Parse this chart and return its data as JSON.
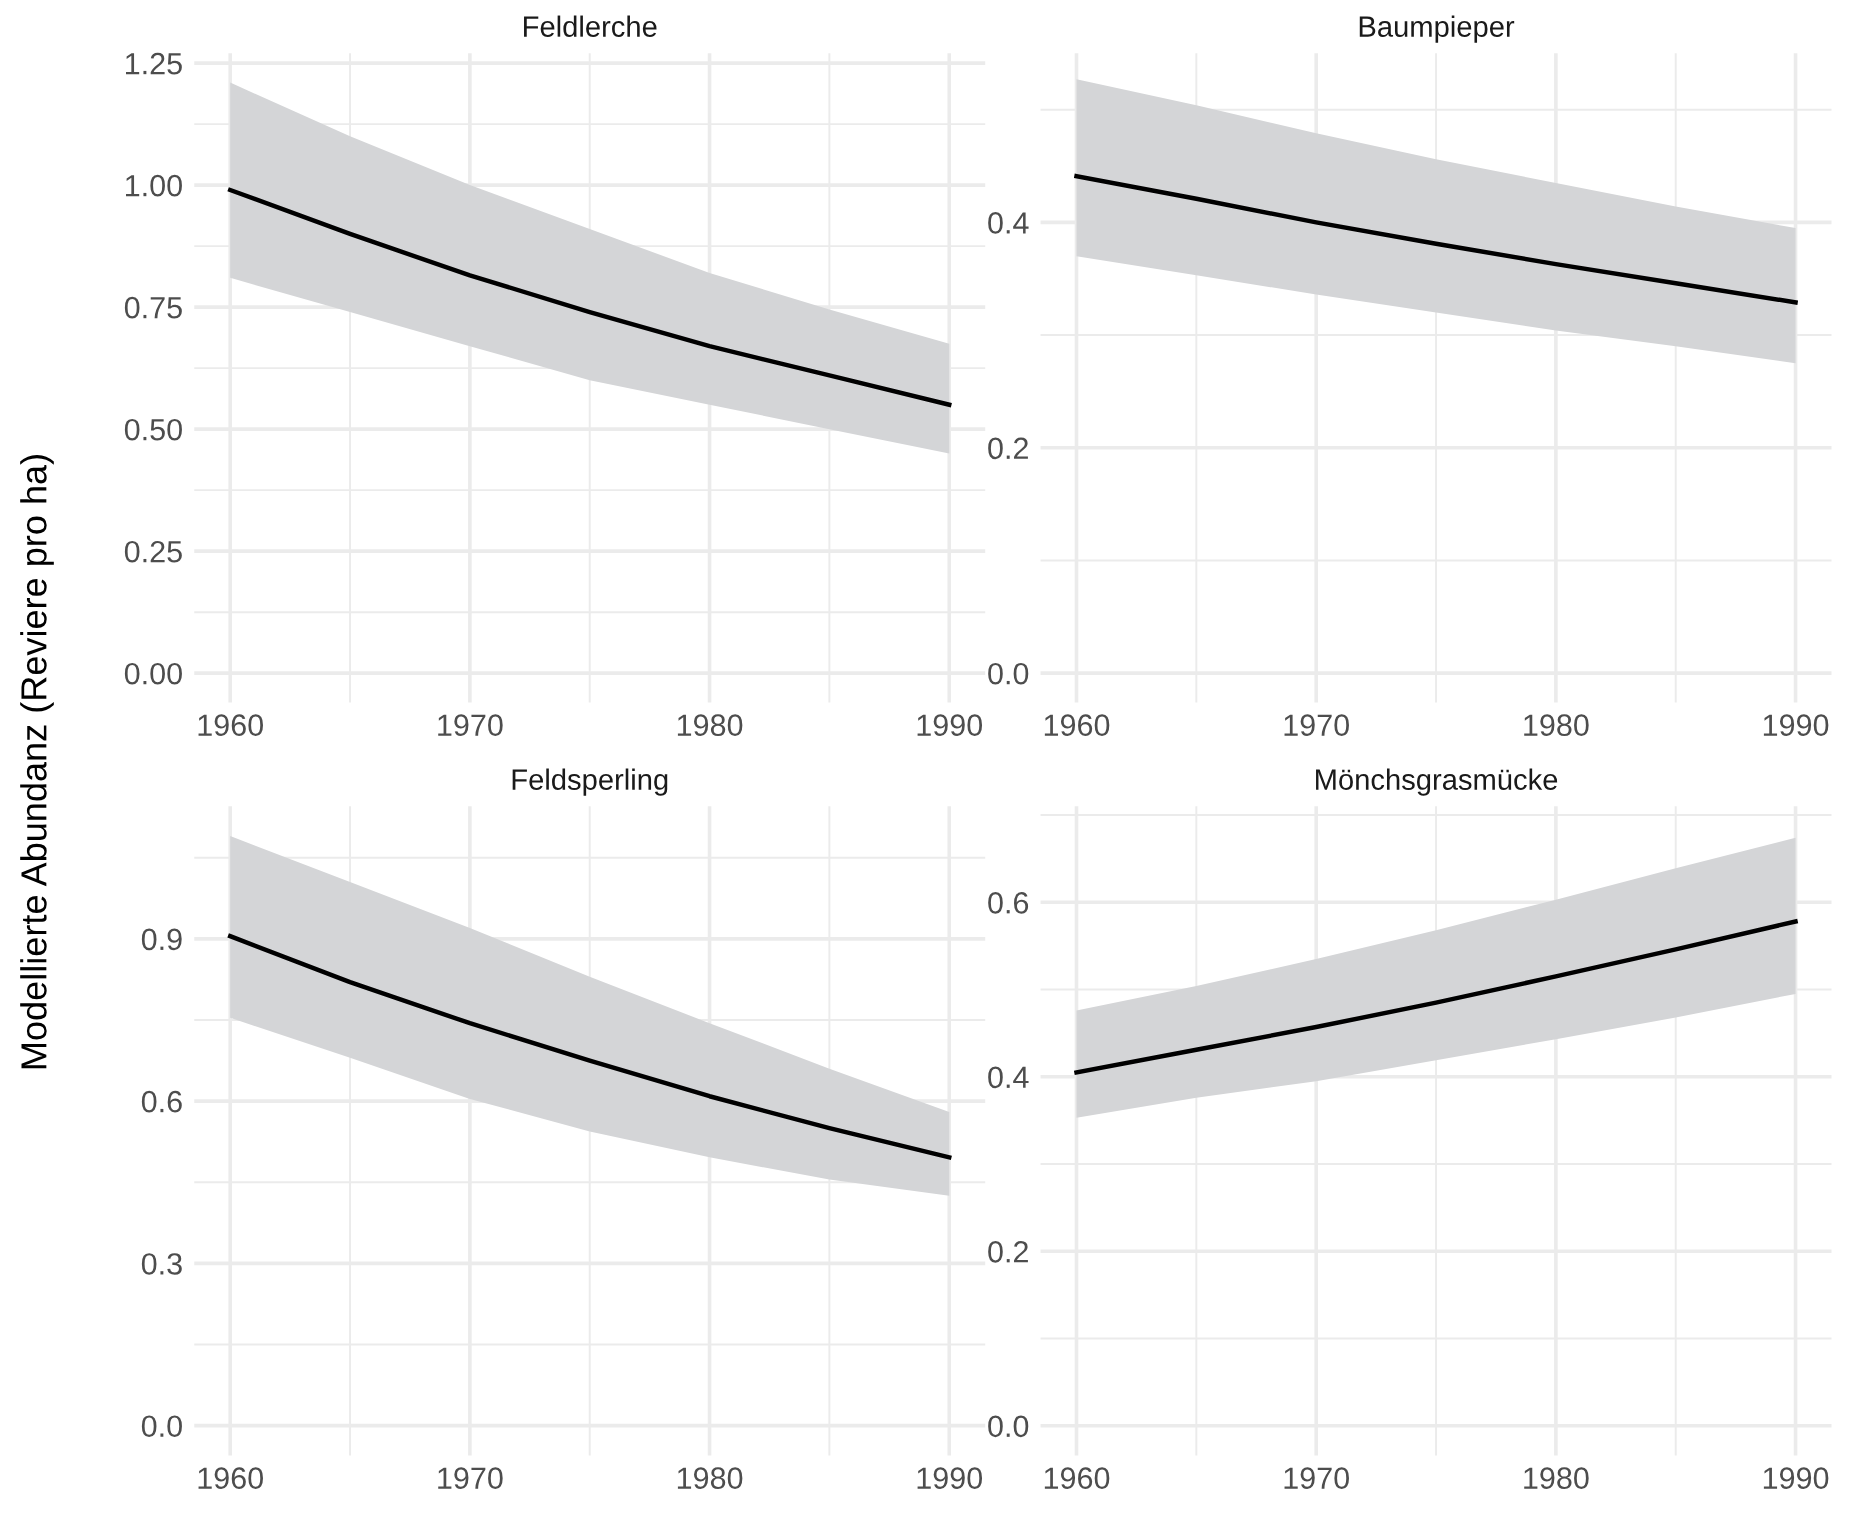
{
  "chart_data": [
    {
      "type": "line",
      "title": "Feldlerche",
      "ylabel": "Modellierte Abundanz (Reviere pro ha)",
      "x": [
        1960,
        1965,
        1970,
        1975,
        1980,
        1985,
        1990
      ],
      "series": [
        {
          "color": "#000000",
          "values": [
            0.99,
            0.9,
            0.815,
            0.74,
            0.67,
            0.61,
            0.55
          ],
          "lower": [
            0.81,
            0.74,
            0.67,
            0.6,
            0.55,
            0.5,
            0.45
          ],
          "upper": [
            1.21,
            1.1,
            1.0,
            0.91,
            0.82,
            0.745,
            0.675
          ]
        }
      ],
      "xlim": [
        1958.5,
        1991.5
      ],
      "xticks": [
        1960,
        {
          "value": 1965,
          "label": null
        },
        1970,
        {
          "value": 1975,
          "label": null
        },
        1980,
        {
          "value": 1985,
          "label": null
        },
        1990
      ],
      "ylim": [
        -0.06,
        1.27
      ],
      "yticks": [
        {
          "value": 0,
          "label": "0.00"
        },
        {
          "value": 0.125,
          "label": null
        },
        {
          "value": 0.25,
          "label": "0.25"
        },
        {
          "value": 0.375,
          "label": null
        },
        {
          "value": 0.5,
          "label": "0.50"
        },
        {
          "value": 0.625,
          "label": null
        },
        {
          "value": 0.75,
          "label": "0.75"
        },
        {
          "value": 0.875,
          "label": null
        },
        {
          "value": 1.0,
          "label": "1.00"
        },
        {
          "value": 1.125,
          "label": null
        },
        {
          "value": 1.25,
          "label": "1.25"
        }
      ],
      "grid": true
    },
    {
      "type": "line",
      "title": "Baumpieper",
      "x": [
        1960,
        1965,
        1970,
        1975,
        1980,
        1985,
        1990
      ],
      "series": [
        {
          "color": "#000000",
          "values": [
            0.441,
            0.421,
            0.4,
            0.381,
            0.363,
            0.346,
            0.329
          ],
          "lower": [
            0.37,
            0.353,
            0.336,
            0.32,
            0.304,
            0.29,
            0.275
          ],
          "upper": [
            0.527,
            0.504,
            0.479,
            0.456,
            0.435,
            0.414,
            0.395
          ]
        }
      ],
      "xlim": [
        1958.5,
        1991.5
      ],
      "xticks": [
        1960,
        {
          "value": 1965,
          "label": null
        },
        1970,
        {
          "value": 1975,
          "label": null
        },
        1980,
        {
          "value": 1985,
          "label": null
        },
        1990
      ],
      "ylim": [
        -0.026,
        0.55
      ],
      "yticks": [
        {
          "value": 0,
          "label": "0.0"
        },
        {
          "value": 0.1,
          "label": null
        },
        0.2,
        {
          "value": 0.3,
          "label": null
        },
        0.4,
        {
          "value": 0.5,
          "label": null
        }
      ],
      "grid": true
    },
    {
      "type": "line",
      "title": "Feldsperling",
      "x": [
        1960,
        1965,
        1970,
        1975,
        1980,
        1985,
        1990
      ],
      "series": [
        {
          "color": "#000000",
          "values": [
            0.905,
            0.82,
            0.744,
            0.675,
            0.609,
            0.55,
            0.496
          ],
          "lower": [
            0.754,
            0.68,
            0.604,
            0.544,
            0.496,
            0.455,
            0.425
          ],
          "upper": [
            1.09,
            1.005,
            0.92,
            0.83,
            0.744,
            0.66,
            0.58
          ]
        }
      ],
      "xlim": [
        1958.5,
        1991.5
      ],
      "xticks": [
        1960,
        {
          "value": 1965,
          "label": null
        },
        1970,
        {
          "value": 1975,
          "label": null
        },
        1980,
        {
          "value": 1985,
          "label": null
        },
        1990
      ],
      "ylim": [
        -0.055,
        1.145
      ],
      "yticks": [
        {
          "value": 0,
          "label": "0.0"
        },
        {
          "value": 0.15,
          "label": null
        },
        0.3,
        {
          "value": 0.45,
          "label": null
        },
        0.6,
        {
          "value": 0.75,
          "label": null
        },
        0.9,
        {
          "value": 1.05,
          "label": null
        }
      ],
      "grid": true
    },
    {
      "type": "line",
      "title": "Mönchsgrasmücke",
      "x": [
        1960,
        1965,
        1970,
        1975,
        1980,
        1985,
        1990
      ],
      "series": [
        {
          "color": "#000000",
          "values": [
            0.405,
            0.431,
            0.457,
            0.485,
            0.515,
            0.546,
            0.578
          ],
          "lower": [
            0.353,
            0.376,
            0.395,
            0.419,
            0.443,
            0.468,
            0.495
          ],
          "upper": [
            0.476,
            0.504,
            0.535,
            0.568,
            0.603,
            0.639,
            0.674
          ]
        }
      ],
      "xlim": [
        1958.5,
        1991.5
      ],
      "xticks": [
        1960,
        {
          "value": 1965,
          "label": null
        },
        1970,
        {
          "value": 1975,
          "label": null
        },
        1980,
        {
          "value": 1985,
          "label": null
        },
        1990
      ],
      "ylim": [
        -0.034,
        0.71
      ],
      "yticks": [
        {
          "value": 0,
          "label": "0.0"
        },
        {
          "value": 0.1,
          "label": null
        },
        0.2,
        {
          "value": 0.3,
          "label": null
        },
        0.4,
        {
          "value": 0.5,
          "label": null
        },
        0.6,
        {
          "value": 0.7,
          "label": null
        }
      ],
      "grid": true
    }
  ]
}
